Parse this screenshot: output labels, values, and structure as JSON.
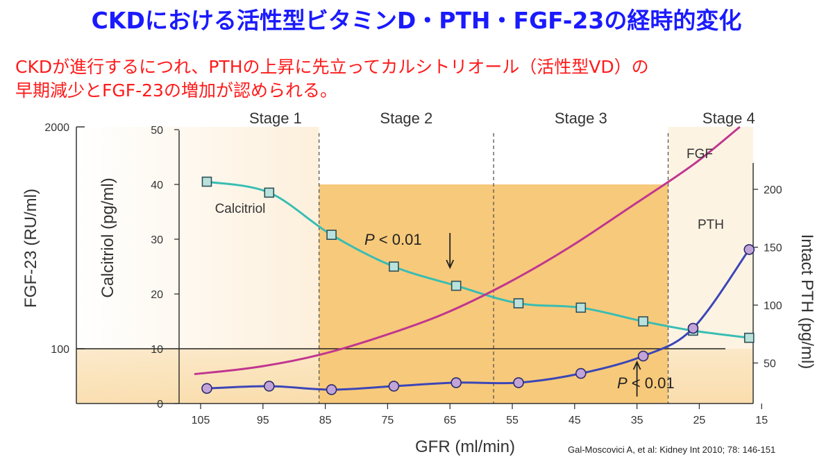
{
  "slide": {
    "title": "CKDにおける活性型ビタミンD・PTH・FGF-23の経時的変化",
    "subtitle_line1": "CKDが進行するにつれ、PTHの上昇に先立ってカルシトリオール（活性型VD）の",
    "subtitle_line2": "早期減少とFGF-23の増加が認められる。",
    "citation": "Gal-Moscovici A, et al: Kidney Int 2010; 78: 146-151",
    "colors": {
      "title": "#1a1aff",
      "subtitle": "#ff1a1a"
    }
  },
  "chart_data": {
    "type": "line",
    "xlabel": "GFR (ml/min)",
    "x_ticks": [
      105,
      95,
      85,
      75,
      65,
      55,
      45,
      35,
      25,
      15
    ],
    "xlim": [
      110,
      15
    ],
    "stages": [
      {
        "label": "Stage 1",
        "gfr_range": [
          110,
          86
        ]
      },
      {
        "label": "Stage 2",
        "gfr_range": [
          86,
          58
        ]
      },
      {
        "label": "Stage 3",
        "gfr_range": [
          58,
          30
        ]
      },
      {
        "label": "Stage 4",
        "gfr_range": [
          30,
          15
        ]
      }
    ],
    "highlight_region": {
      "gfr_range": [
        86,
        30
      ],
      "calcitriol_top": 40,
      "color": "#f7c97a"
    },
    "axes": {
      "fgf23": {
        "label": "FGF-23 (RU/ml)",
        "ticks": [
          100,
          2000
        ],
        "scale": "log"
      },
      "calcitriol": {
        "label": "Calcitriol (pg/ml)",
        "ticks": [
          0,
          10,
          20,
          30,
          40,
          50
        ],
        "ylim": [
          0,
          50
        ]
      },
      "pth": {
        "label": "Intact PTH (pg/ml)",
        "ticks": [
          50,
          100,
          150,
          200
        ],
        "ylim": [
          15,
          230
        ]
      }
    },
    "series": [
      {
        "name": "Calcitriol",
        "axis": "calcitriol",
        "color": "#38bdb3",
        "marker": "square",
        "x": [
          104,
          94,
          84,
          74,
          64,
          54,
          44,
          34,
          26,
          17
        ],
        "y": [
          40.5,
          38.5,
          30.8,
          25.0,
          21.5,
          18.3,
          17.5,
          15.0,
          13.3,
          12.0
        ]
      },
      {
        "name": "PTH",
        "axis": "pth",
        "color": "#3b46b8",
        "marker": "circle",
        "x": [
          104,
          94,
          84,
          74,
          64,
          54,
          44,
          34,
          26,
          17
        ],
        "y": [
          28,
          30,
          27,
          30,
          33,
          33,
          41,
          56,
          80,
          148
        ]
      },
      {
        "name": "FGF",
        "axis": "fgf23",
        "color": "#c0368f",
        "marker": "none",
        "x": [
          106,
          96,
          86,
          76,
          66,
          56,
          46,
          36,
          26,
          18.5
        ],
        "y": [
          71,
          78,
          92,
          118,
          160,
          240,
          390,
          680,
          1200,
          2000
        ]
      }
    ],
    "annotations": [
      {
        "text_italic": "P",
        "text": " < 0.01",
        "arrow": "down",
        "at_gfr": 65
      },
      {
        "text_italic": "P",
        "text": " < 0.01",
        "arrow": "up",
        "at_gfr": 35
      }
    ]
  }
}
